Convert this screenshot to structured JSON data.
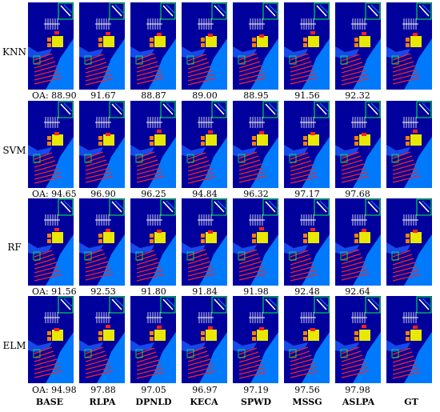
{
  "rows": [
    {
      "label": "KNN",
      "oa": [
        "OA: 88.90",
        "91.67",
        "88.87",
        "89.00",
        "88.95",
        "91.56",
        "92.32"
      ]
    },
    {
      "label": "SVM",
      "oa": [
        "OA: 94.65",
        "96.90",
        "96.25",
        "94.84",
        "96.32",
        "97.17",
        "97.68"
      ]
    },
    {
      "label": "RF",
      "oa": [
        "OA: 91.56",
        "92.53",
        "91.80",
        "91.84",
        "91.98",
        "92.48",
        "92.64"
      ]
    },
    {
      "label": "ELM",
      "oa": [
        "OA: 94.98",
        "97.88",
        "97.05",
        "96.97",
        "97.19",
        "97.56",
        "97.98"
      ]
    }
  ],
  "columns": [
    "BASE",
    "RLPA",
    "DPNLD",
    "KECA",
    "SPWD",
    "MSSG",
    "ASLPA",
    "GT"
  ],
  "colors": {
    "background_class": "#00009c",
    "river": "#0080ff",
    "building": "#e8e800",
    "road": "#ff2020",
    "vegetation": "#1a5bff",
    "roof": "#ff8000",
    "highlight_box": "#00ff40"
  }
}
